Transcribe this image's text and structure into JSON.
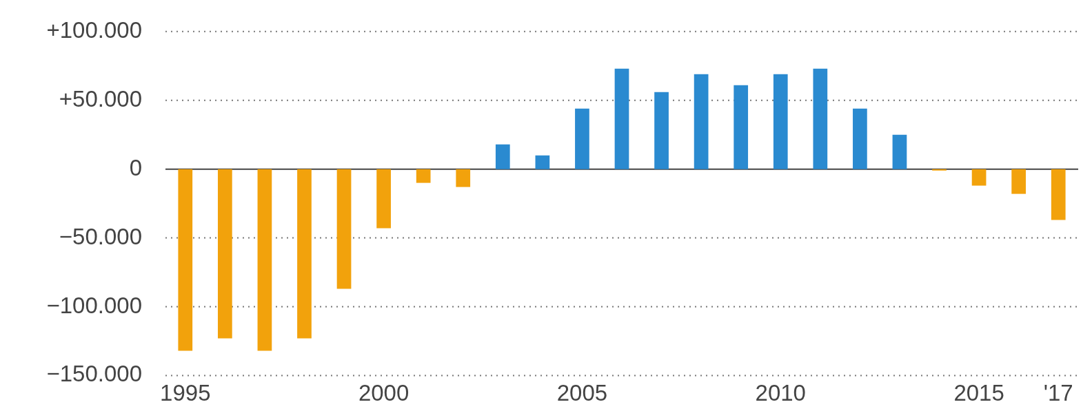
{
  "chart_data": {
    "type": "bar",
    "categories": [
      "1995",
      null,
      null,
      null,
      null,
      "2000",
      null,
      null,
      null,
      null,
      "2005",
      null,
      null,
      null,
      null,
      "2010",
      null,
      null,
      null,
      null,
      "2015",
      null,
      "'17"
    ],
    "values": [
      -132000,
      -123000,
      -132000,
      -123000,
      -87000,
      -43000,
      -10000,
      -13000,
      18000,
      10000,
      44000,
      73000,
      56000,
      69000,
      61000,
      69000,
      73000,
      44000,
      25000,
      -1000,
      -12000,
      -18000,
      -37000
    ],
    "colors": [
      "#f2a20c",
      "#f2a20c",
      "#f2a20c",
      "#f2a20c",
      "#f2a20c",
      "#f2a20c",
      "#f2a20c",
      "#f2a20c",
      "#2a8ad0",
      "#2a8ad0",
      "#2a8ad0",
      "#2a8ad0",
      "#2a8ad0",
      "#2a8ad0",
      "#2a8ad0",
      "#2a8ad0",
      "#2a8ad0",
      "#2a8ad0",
      "#2a8ad0",
      "#f2a20c",
      "#f2a20c",
      "#f2a20c",
      "#f2a20c"
    ],
    "ylim": [
      -150000,
      100000
    ],
    "yticks": [
      {
        "value": -150000,
        "label": "−150.000"
      },
      {
        "value": -100000,
        "label": "−100.000"
      },
      {
        "value": -50000,
        "label": "−50.000"
      },
      0,
      {
        "value": 50000,
        "label": "+50.000"
      },
      {
        "value": 100000,
        "label": "+100.000"
      }
    ],
    "grid": "y"
  }
}
